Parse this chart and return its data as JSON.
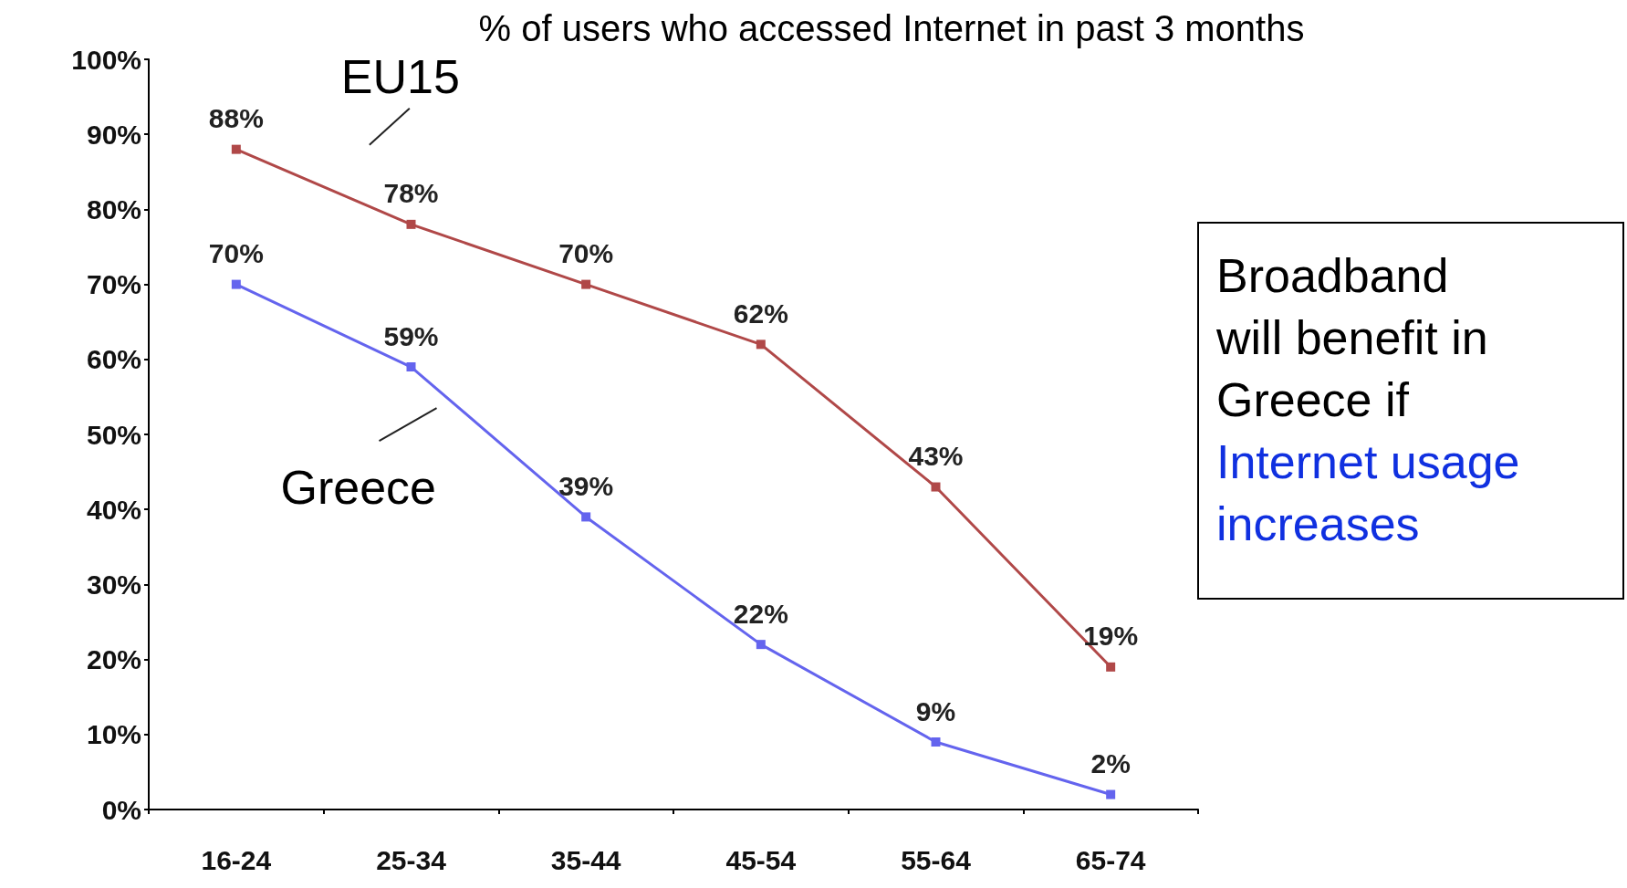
{
  "chart_data": {
    "type": "line",
    "title": "% of users who accessed Internet in past 3 months",
    "categories": [
      "16-24",
      "25-34",
      "35-44",
      "45-54",
      "55-64",
      "65-74"
    ],
    "series": [
      {
        "name": "EU15",
        "color": "#b04848",
        "values": [
          88,
          78,
          70,
          62,
          43,
          19
        ],
        "value_labels": [
          "88%",
          "78%",
          "70%",
          "62%",
          "43%",
          "19%"
        ]
      },
      {
        "name": "Greece",
        "color": "#6464ee",
        "values": [
          70,
          59,
          39,
          22,
          9,
          2
        ],
        "value_labels": [
          "70%",
          "59%",
          "39%",
          "22%",
          "9%",
          "2%"
        ]
      }
    ],
    "ylim": [
      0,
      100
    ],
    "yticks": [
      {
        "value": 0,
        "label": "0%"
      },
      {
        "value": 10,
        "label": "10%"
      },
      {
        "value": 20,
        "label": "20%"
      },
      {
        "value": 30,
        "label": "30%"
      },
      {
        "value": 40,
        "label": "40%"
      },
      {
        "value": 50,
        "label": "50%"
      },
      {
        "value": 60,
        "label": "60%"
      },
      {
        "value": 70,
        "label": "70%"
      },
      {
        "value": 80,
        "label": "80%"
      },
      {
        "value": 90,
        "label": "90%"
      },
      {
        "value": 100,
        "label": "100%"
      }
    ],
    "annotations": [
      "Broadband will benefit in Greece if",
      "Internet usage increases"
    ],
    "grid": false,
    "legend": false,
    "marker": "square",
    "line_style": "solid"
  }
}
